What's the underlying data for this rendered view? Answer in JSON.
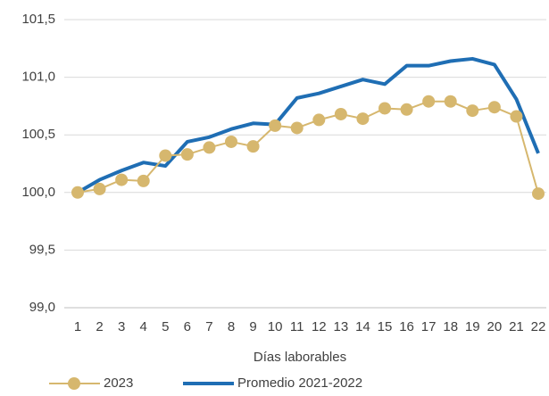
{
  "chart_data": {
    "type": "line",
    "xlabel": "Días laborables",
    "categories": [
      "1",
      "2",
      "3",
      "4",
      "5",
      "6",
      "7",
      "8",
      "9",
      "10",
      "11",
      "12",
      "13",
      "14",
      "15",
      "16",
      "17",
      "18",
      "19",
      "20",
      "21",
      "22"
    ],
    "series": [
      {
        "name": "2023",
        "color": "#d6b76e",
        "marker": true,
        "values": [
          100.0,
          100.03,
          100.11,
          100.1,
          100.32,
          100.33,
          100.39,
          100.44,
          100.4,
          100.58,
          100.56,
          100.63,
          100.68,
          100.64,
          100.73,
          100.72,
          100.79,
          100.79,
          100.71,
          100.74,
          100.66,
          99.99
        ]
      },
      {
        "name": "Promedio 2021-2022",
        "color": "#1f6eb4",
        "marker": false,
        "values": [
          100.0,
          100.11,
          100.19,
          100.26,
          100.23,
          100.44,
          100.48,
          100.55,
          100.6,
          100.59,
          100.82,
          100.86,
          100.92,
          100.98,
          100.94,
          101.1,
          101.1,
          101.14,
          101.16,
          101.11,
          100.81,
          100.34
        ]
      }
    ],
    "ylim": [
      99.0,
      101.5
    ],
    "yticks": [
      {
        "value": 99.0,
        "label": "99,0"
      },
      {
        "value": 99.5,
        "label": "99,5"
      },
      {
        "value": 100.0,
        "label": "100,0"
      },
      {
        "value": 100.5,
        "label": "100,5"
      },
      {
        "value": 101.0,
        "label": "101,0"
      },
      {
        "value": 101.5,
        "label": "101,5"
      }
    ],
    "grid": true,
    "legend": "bottom"
  }
}
